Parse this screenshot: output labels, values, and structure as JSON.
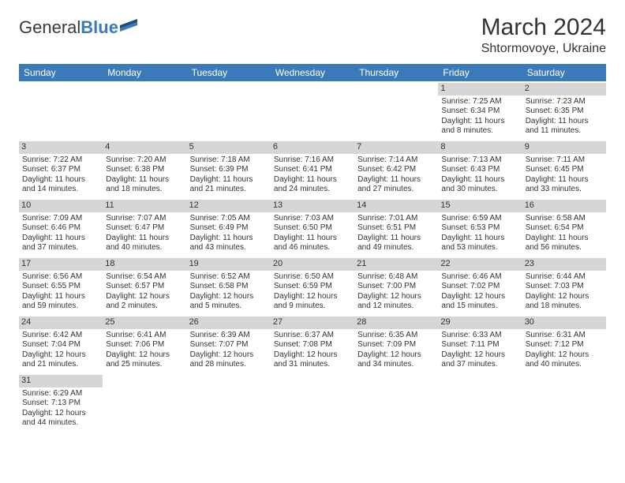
{
  "logo": {
    "general": "General",
    "blue": "Blue"
  },
  "title": {
    "month": "March 2024",
    "location": "Shtormovoye, Ukraine"
  },
  "colors": {
    "header_bg": "#3a7ab8",
    "header_fg": "#ffffff",
    "daynum_bg": "#d6d6d6",
    "text": "#333333"
  },
  "day_names": [
    "Sunday",
    "Monday",
    "Tuesday",
    "Wednesday",
    "Thursday",
    "Friday",
    "Saturday"
  ],
  "weeks": [
    [
      null,
      null,
      null,
      null,
      null,
      {
        "n": "1",
        "sr": "Sunrise: 7:25 AM",
        "ss": "Sunset: 6:34 PM",
        "d1": "Daylight: 11 hours",
        "d2": "and 8 minutes."
      },
      {
        "n": "2",
        "sr": "Sunrise: 7:23 AM",
        "ss": "Sunset: 6:35 PM",
        "d1": "Daylight: 11 hours",
        "d2": "and 11 minutes."
      }
    ],
    [
      {
        "n": "3",
        "sr": "Sunrise: 7:22 AM",
        "ss": "Sunset: 6:37 PM",
        "d1": "Daylight: 11 hours",
        "d2": "and 14 minutes."
      },
      {
        "n": "4",
        "sr": "Sunrise: 7:20 AM",
        "ss": "Sunset: 6:38 PM",
        "d1": "Daylight: 11 hours",
        "d2": "and 18 minutes."
      },
      {
        "n": "5",
        "sr": "Sunrise: 7:18 AM",
        "ss": "Sunset: 6:39 PM",
        "d1": "Daylight: 11 hours",
        "d2": "and 21 minutes."
      },
      {
        "n": "6",
        "sr": "Sunrise: 7:16 AM",
        "ss": "Sunset: 6:41 PM",
        "d1": "Daylight: 11 hours",
        "d2": "and 24 minutes."
      },
      {
        "n": "7",
        "sr": "Sunrise: 7:14 AM",
        "ss": "Sunset: 6:42 PM",
        "d1": "Daylight: 11 hours",
        "d2": "and 27 minutes."
      },
      {
        "n": "8",
        "sr": "Sunrise: 7:13 AM",
        "ss": "Sunset: 6:43 PM",
        "d1": "Daylight: 11 hours",
        "d2": "and 30 minutes."
      },
      {
        "n": "9",
        "sr": "Sunrise: 7:11 AM",
        "ss": "Sunset: 6:45 PM",
        "d1": "Daylight: 11 hours",
        "d2": "and 33 minutes."
      }
    ],
    [
      {
        "n": "10",
        "sr": "Sunrise: 7:09 AM",
        "ss": "Sunset: 6:46 PM",
        "d1": "Daylight: 11 hours",
        "d2": "and 37 minutes."
      },
      {
        "n": "11",
        "sr": "Sunrise: 7:07 AM",
        "ss": "Sunset: 6:47 PM",
        "d1": "Daylight: 11 hours",
        "d2": "and 40 minutes."
      },
      {
        "n": "12",
        "sr": "Sunrise: 7:05 AM",
        "ss": "Sunset: 6:49 PM",
        "d1": "Daylight: 11 hours",
        "d2": "and 43 minutes."
      },
      {
        "n": "13",
        "sr": "Sunrise: 7:03 AM",
        "ss": "Sunset: 6:50 PM",
        "d1": "Daylight: 11 hours",
        "d2": "and 46 minutes."
      },
      {
        "n": "14",
        "sr": "Sunrise: 7:01 AM",
        "ss": "Sunset: 6:51 PM",
        "d1": "Daylight: 11 hours",
        "d2": "and 49 minutes."
      },
      {
        "n": "15",
        "sr": "Sunrise: 6:59 AM",
        "ss": "Sunset: 6:53 PM",
        "d1": "Daylight: 11 hours",
        "d2": "and 53 minutes."
      },
      {
        "n": "16",
        "sr": "Sunrise: 6:58 AM",
        "ss": "Sunset: 6:54 PM",
        "d1": "Daylight: 11 hours",
        "d2": "and 56 minutes."
      }
    ],
    [
      {
        "n": "17",
        "sr": "Sunrise: 6:56 AM",
        "ss": "Sunset: 6:55 PM",
        "d1": "Daylight: 11 hours",
        "d2": "and 59 minutes."
      },
      {
        "n": "18",
        "sr": "Sunrise: 6:54 AM",
        "ss": "Sunset: 6:57 PM",
        "d1": "Daylight: 12 hours",
        "d2": "and 2 minutes."
      },
      {
        "n": "19",
        "sr": "Sunrise: 6:52 AM",
        "ss": "Sunset: 6:58 PM",
        "d1": "Daylight: 12 hours",
        "d2": "and 5 minutes."
      },
      {
        "n": "20",
        "sr": "Sunrise: 6:50 AM",
        "ss": "Sunset: 6:59 PM",
        "d1": "Daylight: 12 hours",
        "d2": "and 9 minutes."
      },
      {
        "n": "21",
        "sr": "Sunrise: 6:48 AM",
        "ss": "Sunset: 7:00 PM",
        "d1": "Daylight: 12 hours",
        "d2": "and 12 minutes."
      },
      {
        "n": "22",
        "sr": "Sunrise: 6:46 AM",
        "ss": "Sunset: 7:02 PM",
        "d1": "Daylight: 12 hours",
        "d2": "and 15 minutes."
      },
      {
        "n": "23",
        "sr": "Sunrise: 6:44 AM",
        "ss": "Sunset: 7:03 PM",
        "d1": "Daylight: 12 hours",
        "d2": "and 18 minutes."
      }
    ],
    [
      {
        "n": "24",
        "sr": "Sunrise: 6:42 AM",
        "ss": "Sunset: 7:04 PM",
        "d1": "Daylight: 12 hours",
        "d2": "and 21 minutes."
      },
      {
        "n": "25",
        "sr": "Sunrise: 6:41 AM",
        "ss": "Sunset: 7:06 PM",
        "d1": "Daylight: 12 hours",
        "d2": "and 25 minutes."
      },
      {
        "n": "26",
        "sr": "Sunrise: 6:39 AM",
        "ss": "Sunset: 7:07 PM",
        "d1": "Daylight: 12 hours",
        "d2": "and 28 minutes."
      },
      {
        "n": "27",
        "sr": "Sunrise: 6:37 AM",
        "ss": "Sunset: 7:08 PM",
        "d1": "Daylight: 12 hours",
        "d2": "and 31 minutes."
      },
      {
        "n": "28",
        "sr": "Sunrise: 6:35 AM",
        "ss": "Sunset: 7:09 PM",
        "d1": "Daylight: 12 hours",
        "d2": "and 34 minutes."
      },
      {
        "n": "29",
        "sr": "Sunrise: 6:33 AM",
        "ss": "Sunset: 7:11 PM",
        "d1": "Daylight: 12 hours",
        "d2": "and 37 minutes."
      },
      {
        "n": "30",
        "sr": "Sunrise: 6:31 AM",
        "ss": "Sunset: 7:12 PM",
        "d1": "Daylight: 12 hours",
        "d2": "and 40 minutes."
      }
    ],
    [
      {
        "n": "31",
        "sr": "Sunrise: 6:29 AM",
        "ss": "Sunset: 7:13 PM",
        "d1": "Daylight: 12 hours",
        "d2": "and 44 minutes."
      },
      null,
      null,
      null,
      null,
      null,
      null
    ]
  ]
}
